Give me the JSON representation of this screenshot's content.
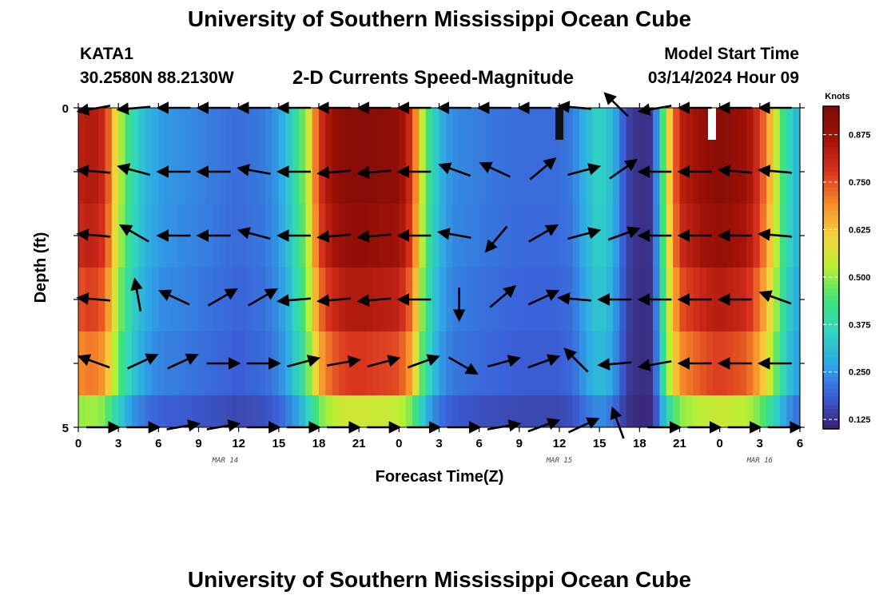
{
  "header": {
    "title": "University of Southern Mississippi Ocean Cube",
    "station": "KATA1",
    "coords": "30.2580N  88.2130W",
    "subtitle": "2-D Currents Speed-Magnitude",
    "model_start_label": "Model Start Time",
    "model_start_value": "03/14/2024 Hour 09"
  },
  "footer": {
    "title": "University of Southern Mississippi Ocean Cube"
  },
  "colors": {
    "background": "#ffffff",
    "colormap": [
      "#3a1f6a",
      "#3b5fd8",
      "#2fa6e6",
      "#30d5c0",
      "#3ee27a",
      "#b8f034",
      "#f5d43a",
      "#f78a2a",
      "#d8321e",
      "#a31208",
      "#7a0a06"
    ]
  },
  "chart_data": {
    "type": "heatmap",
    "title": "2-D Currents Speed-Magnitude",
    "xlabel": "Forecast Time(Z)",
    "ylabel": "Depth (ft)",
    "x_ticks": [
      "0",
      "3",
      "6",
      "9",
      "12",
      "15",
      "18",
      "21",
      "0",
      "3",
      "6",
      "9",
      "12",
      "15",
      "18",
      "21",
      "0",
      "3",
      "6"
    ],
    "x_range_hours": [
      0,
      54
    ],
    "date_labels": [
      {
        "label": "MAR 14",
        "hour": 11
      },
      {
        "label": "MAR 15",
        "hour": 36
      },
      {
        "label": "MAR 16",
        "hour": 51
      }
    ],
    "y_ticks": [
      "0",
      "5"
    ],
    "y_range": [
      0,
      5
    ],
    "colorbar": {
      "label": "Knots",
      "range": [
        0.1,
        0.95
      ],
      "ticks": [
        "0.875",
        "0.750",
        "0.625",
        "0.500",
        "0.375",
        "0.250",
        "0.125"
      ],
      "tick_values": [
        0.875,
        0.75,
        0.625,
        0.5,
        0.375,
        0.25,
        0.125
      ]
    },
    "depth_rows": [
      "0",
      "1",
      "2",
      "3",
      "4",
      "5"
    ],
    "speed_profile_hours": [
      0,
      1,
      2,
      3,
      4,
      5,
      6,
      8,
      10,
      12,
      14,
      15,
      16,
      17,
      18,
      19,
      20,
      21,
      24,
      25,
      26,
      27,
      28,
      30,
      33,
      35,
      36,
      37,
      38,
      39,
      40,
      41,
      42,
      43,
      44,
      45,
      47,
      48,
      50,
      51,
      52,
      53,
      54
    ],
    "speed_profile_knots": [
      0.82,
      0.85,
      0.8,
      0.55,
      0.38,
      0.3,
      0.26,
      0.24,
      0.22,
      0.2,
      0.22,
      0.26,
      0.35,
      0.5,
      0.78,
      0.88,
      0.92,
      0.93,
      0.9,
      0.78,
      0.45,
      0.3,
      0.24,
      0.22,
      0.2,
      0.2,
      0.2,
      0.22,
      0.3,
      0.36,
      0.3,
      0.15,
      0.12,
      0.13,
      0.55,
      0.82,
      0.9,
      0.92,
      0.88,
      0.78,
      0.6,
      0.38,
      0.28
    ],
    "depth_scale": [
      1.0,
      1.0,
      0.97,
      0.9,
      0.82,
      0.55
    ],
    "current_vectors": {
      "hours": [
        1.5,
        4.5,
        7.5,
        10.5,
        13.5,
        16.5,
        19.5,
        22.5,
        25.5,
        28.5,
        31.5,
        34.5,
        37.5,
        40.5,
        43.5,
        46.5,
        49.5,
        52.5
      ],
      "rows": [
        {
          "depth": 0,
          "dir_deg": [
            190,
            185,
            180,
            180,
            180,
            180,
            180,
            180,
            180,
            180,
            180,
            180,
            175,
            135,
            190,
            180,
            180,
            180
          ]
        },
        {
          "depth": 1,
          "dir_deg": [
            175,
            165,
            180,
            180,
            170,
            180,
            185,
            185,
            180,
            160,
            155,
            40,
            15,
            35,
            180,
            180,
            175,
            175
          ]
        },
        {
          "depth": 2,
          "dir_deg": [
            175,
            150,
            180,
            180,
            165,
            180,
            185,
            185,
            180,
            170,
            230,
            30,
            15,
            20,
            180,
            180,
            180,
            175
          ]
        },
        {
          "depth": 3,
          "dir_deg": [
            175,
            100,
            155,
            30,
            30,
            185,
            185,
            185,
            180,
            270,
            40,
            25,
            175,
            180,
            180,
            180,
            180,
            160
          ]
        },
        {
          "depth": 4,
          "dir_deg": [
            160,
            25,
            25,
            0,
            0,
            15,
            10,
            15,
            20,
            330,
            15,
            20,
            135,
            185,
            190,
            180,
            180,
            180
          ]
        },
        {
          "depth": 5,
          "dir_deg": [
            0,
            0,
            10,
            10,
            0,
            0,
            0,
            0,
            0,
            0,
            10,
            20,
            25,
            110,
            0,
            0,
            0,
            0
          ]
        }
      ]
    }
  }
}
